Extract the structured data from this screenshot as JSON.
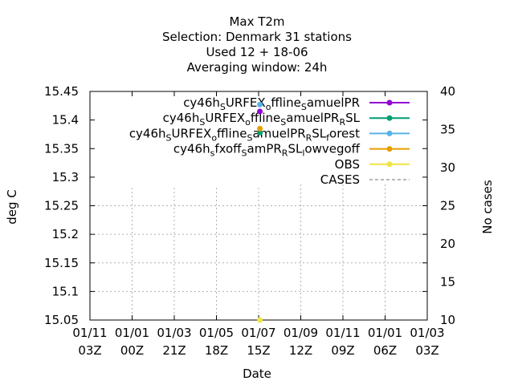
{
  "chart_data": {
    "type": "scatter",
    "title_lines": [
      "Max T2m",
      "Selection: Denmark      31 stations",
      "Used  12 + 18-06",
      "Averaging window: 24h"
    ],
    "xlabel": "Date",
    "ylabel": "deg C",
    "y2label": "No cases",
    "ylim": [
      15.05,
      15.45
    ],
    "y2lim": [
      10,
      40
    ],
    "y_ticks": [
      "15.05",
      "15.1",
      "15.15",
      "15.2",
      "15.25",
      "15.3",
      "15.35",
      "15.4",
      "15.45"
    ],
    "y2_ticks": [
      "10",
      "15",
      "20",
      "25",
      "30",
      "35",
      "40"
    ],
    "x_ticks": [
      {
        "top": "01/11",
        "bottom": "03Z"
      },
      {
        "top": "01/01",
        "bottom": "00Z"
      },
      {
        "top": "01/03",
        "bottom": "21Z"
      },
      {
        "top": "01/05",
        "bottom": "18Z"
      },
      {
        "top": "01/07",
        "bottom": "15Z"
      },
      {
        "top": "01/09",
        "bottom": "12Z"
      },
      {
        "top": "01/11",
        "bottom": "09Z"
      },
      {
        "top": "01/01",
        "bottom": "06Z"
      },
      {
        "top": "01/03",
        "bottom": "03Z"
      }
    ],
    "grid": true,
    "legend_position": "top-right",
    "series": [
      {
        "name": "cy46h_sURFEX_offline_samuelPR",
        "label_parts": [
          [
            "cy46h",
            0
          ],
          [
            "S",
            1
          ],
          [
            "URFEX",
            0
          ],
          [
            "o",
            1
          ],
          [
            "ffline",
            0
          ],
          [
            "S",
            1
          ],
          [
            "amuelPR",
            0
          ]
        ],
        "color": "#9400d3",
        "marker": "circle",
        "x_index": 4.03,
        "y": 15.415
      },
      {
        "name": "cy46h_sURFEX_offline_samuelPR_RSL",
        "label_parts": [
          [
            "cy46h",
            0
          ],
          [
            "S",
            1
          ],
          [
            "URFEX",
            0
          ],
          [
            "o",
            1
          ],
          [
            "ffline",
            0
          ],
          [
            "S",
            1
          ],
          [
            "amuelPR",
            0
          ],
          [
            "R",
            1
          ],
          [
            "SL",
            0
          ]
        ],
        "color": "#009e73",
        "marker": "circle",
        "x_index": 4.03,
        "y": 15.378
      },
      {
        "name": "cy46h_sURFEX_offline_samuelPR_RSL_forest",
        "label_parts": [
          [
            "cy46h",
            0
          ],
          [
            "S",
            1
          ],
          [
            "URFEX",
            0
          ],
          [
            "o",
            1
          ],
          [
            "ffline",
            0
          ],
          [
            "S",
            1
          ],
          [
            "amuelPR",
            0
          ],
          [
            "R",
            1
          ],
          [
            "SL",
            0
          ],
          [
            "f",
            1
          ],
          [
            "orest",
            0
          ]
        ],
        "color": "#56b4e9",
        "marker": "circle",
        "x_index": 4.03,
        "y": 15.427
      },
      {
        "name": "cy46h_sfxoff_samPR_RSL_lowvegoff",
        "label_parts": [
          [
            "cy46h",
            0
          ],
          [
            "s",
            1
          ],
          [
            "fxoff",
            0
          ],
          [
            "S",
            1
          ],
          [
            "amPR",
            0
          ],
          [
            "R",
            1
          ],
          [
            "SL",
            0
          ],
          [
            "l",
            1
          ],
          [
            "owvegoff",
            0
          ]
        ],
        "color": "#e69f00",
        "marker": "circle",
        "x_index": 4.03,
        "y": 15.385
      },
      {
        "name": "OBS",
        "label_parts": [
          [
            "OBS",
            0
          ]
        ],
        "color": "#f0e442",
        "marker": "circle",
        "x_index": 4.03,
        "y": 15.05
      },
      {
        "name": "CASES",
        "label_parts": [
          [
            "CASES",
            0
          ]
        ],
        "color": "#a0a0a0",
        "marker": "none",
        "dashed": true
      }
    ]
  }
}
